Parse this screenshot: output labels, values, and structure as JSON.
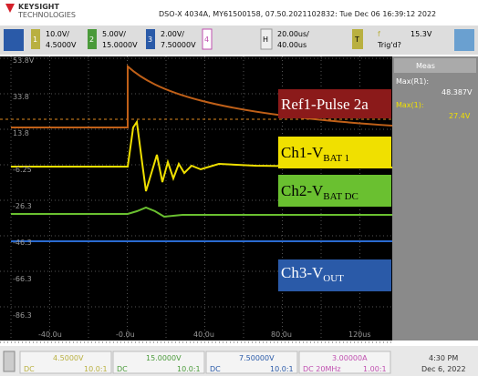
{
  "header": {
    "brand": "KEYSIGHT",
    "brand_sub": "TECHNOLOGIES",
    "info": "DSO-X 4034A, MY61500158, 07.50.2021102832: Tue Dec 06 16:39:12 2022"
  },
  "channels": [
    {
      "num": "1",
      "scale": "10.0V/",
      "offset": "4.5000V"
    },
    {
      "num": "2",
      "scale": "5.00V/",
      "offset": "15.0000V"
    },
    {
      "num": "3",
      "scale": "2.00V/",
      "offset": "7.50000V"
    },
    {
      "num": "4"
    }
  ],
  "timebase": {
    "key": "H",
    "scale": "20.00us/",
    "delay": "40.00us"
  },
  "trigger": {
    "key": "T",
    "edge": "f",
    "level": "15.3V",
    "status": "Trig'd?"
  },
  "y_labels": [
    "53.8V",
    "33.8",
    "13.8",
    "-6.25",
    "-26.3",
    "-46.3",
    "-66.3",
    "-86.3"
  ],
  "x_labels": [
    "-40.0u",
    "-0.0u",
    "40.0u",
    "80.0u",
    "120us"
  ],
  "legend": [
    {
      "text": "Ref1-Pulse 2a"
    },
    {
      "text": "Ch1-V",
      "sub": "BAT 1"
    },
    {
      "text": "Ch2-V",
      "sub": "BAT DC"
    },
    {
      "text": "Ch3-V",
      "sub": "OUT"
    }
  ],
  "meas": {
    "title": "Meas",
    "label1": "Max(R1):",
    "value1": "48.387V",
    "label2": "Max(1):",
    "value2": "27.4V"
  },
  "bottom": [
    {
      "offset": "4.5000V",
      "coupling": "DC",
      "probe": "10.0:1"
    },
    {
      "offset": "15.0000V",
      "coupling": "DC",
      "probe": "10.0:1"
    },
    {
      "offset": "7.50000V",
      "coupling": "DC",
      "probe": "10.0:1"
    },
    {
      "offset": "3.00000A",
      "coupling": "DC 20MHz",
      "probe": "1.00:1"
    }
  ],
  "clock": {
    "time": "4:30 PM",
    "date": "Dec 6, 2022"
  }
}
